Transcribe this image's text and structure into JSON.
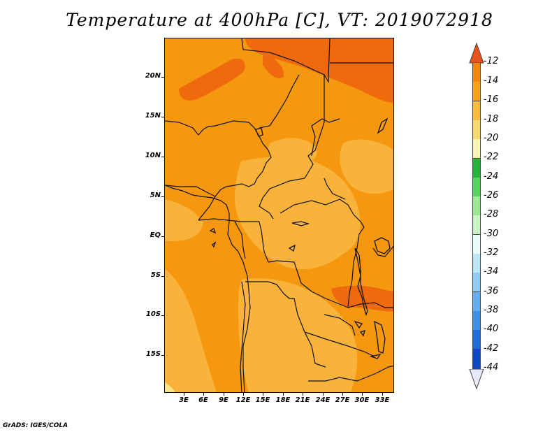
{
  "title": "Temperature at 400hPa [C], VT: 2019072918",
  "credit": "GrADS: IGES/COLA",
  "y_axis": {
    "labels": [
      "20N",
      "15N",
      "10N",
      "5N",
      "EQ",
      "5S",
      "10S",
      "15S"
    ],
    "latitudes": [
      20,
      15,
      10,
      5,
      0,
      -5,
      -10,
      -15
    ]
  },
  "x_axis": {
    "labels": [
      "3E",
      "6E",
      "9E",
      "12E",
      "15E",
      "18E",
      "21E",
      "24E",
      "27E",
      "30E",
      "33E"
    ],
    "longitudes": [
      3,
      6,
      9,
      12,
      15,
      18,
      21,
      24,
      27,
      30,
      33
    ]
  },
  "extent": {
    "lon": [
      0,
      34.6
    ],
    "lat": [
      -19.8,
      24.6
    ]
  },
  "colorbar": {
    "labels": [
      "-12",
      "-14",
      "-16",
      "-18",
      "-20",
      "-22",
      "-24",
      "-26",
      "-28",
      "-30",
      "-32",
      "-34",
      "-36",
      "-38",
      "-40",
      "-42",
      "-44"
    ],
    "colors": [
      "#e8501c",
      "#f5860a",
      "#faa21f",
      "#fbbb3e",
      "#fcd96e",
      "#fdf4b4",
      "#27b43b",
      "#55d35c",
      "#9ee795",
      "#c9f5c4",
      "#e8fcfb",
      "#bde7fb",
      "#92ccf7",
      "#65adf1",
      "#3d8fe7",
      "#1e6ddd",
      "#0c4ac6",
      "#07239c"
    ],
    "top_triangle_color": "#e8501c",
    "bottom_triangle_color": "#e8e8fc"
  },
  "field_colors": {
    "deep": "#ef6a0c",
    "main": "#f5980f",
    "light": "#f9b33a",
    "palest": "#fce48a"
  }
}
